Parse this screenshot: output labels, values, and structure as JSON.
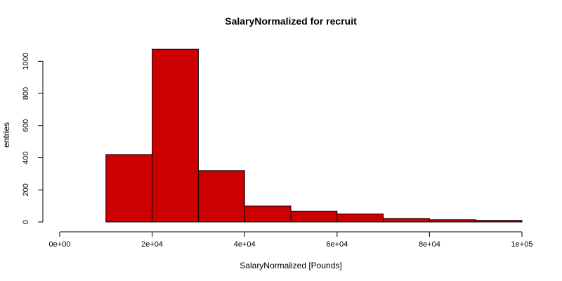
{
  "chart_data": {
    "type": "bar",
    "title": "SalaryNormalized for recruit",
    "xlabel": "SalaryNormalized [Pounds]",
    "ylabel": "entries",
    "xlim": [
      0,
      100000
    ],
    "ylim": [
      0,
      1080
    ],
    "x_ticks": [
      0,
      20000,
      40000,
      60000,
      80000,
      100000
    ],
    "x_tick_labels": [
      "0e+00",
      "2e+04",
      "4e+04",
      "6e+04",
      "8e+04",
      "1e+05"
    ],
    "y_ticks": [
      0,
      200,
      400,
      600,
      800,
      1000
    ],
    "y_tick_labels": [
      "0",
      "200",
      "400",
      "600",
      "800",
      "1000"
    ],
    "bin_edges": [
      0,
      10000,
      20000,
      30000,
      40000,
      50000,
      60000,
      70000,
      80000,
      90000,
      100000
    ],
    "values": [
      0,
      420,
      1075,
      320,
      100,
      68,
      50,
      22,
      14,
      10
    ],
    "grid": false,
    "bar_color": "#cc0000",
    "edge_color": "#000000"
  }
}
